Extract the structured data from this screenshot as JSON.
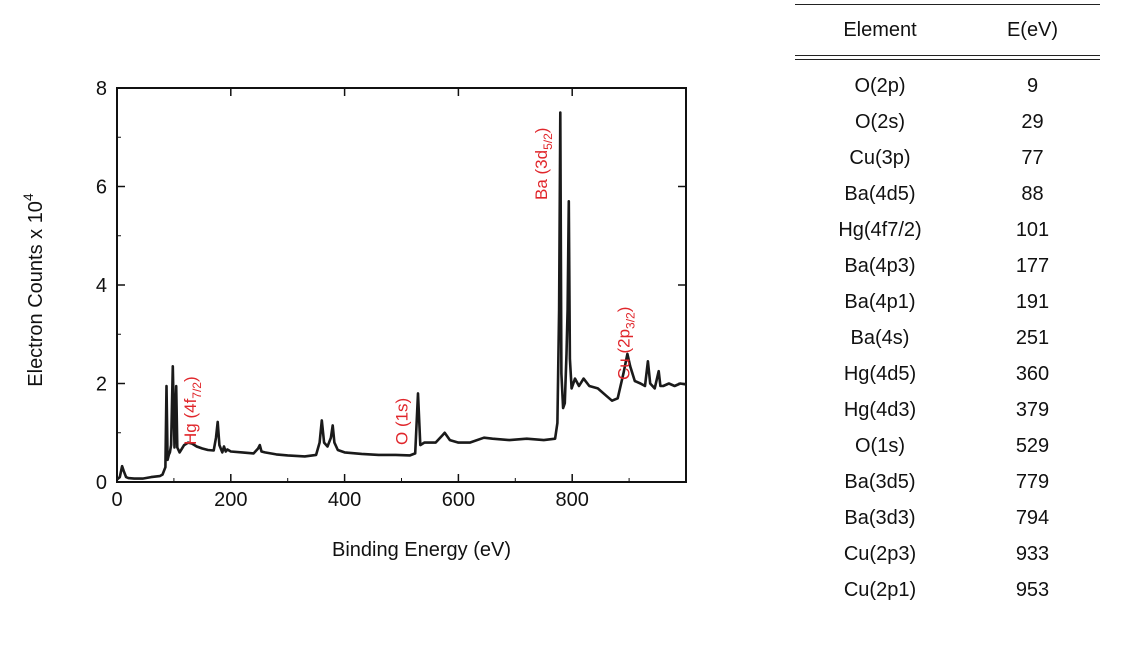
{
  "chart_data": {
    "type": "line",
    "xlabel": "Binding Energy (eV)",
    "ylabel": "Electron Counts x 10",
    "ylabel_superscript": "4",
    "xlim": [
      0,
      1000
    ],
    "ylim": [
      0,
      8
    ],
    "xticks": [
      0,
      200,
      400,
      600,
      800
    ],
    "yticks": [
      0,
      2,
      4,
      6,
      8
    ],
    "grid": false,
    "series": [
      {
        "color": "#1a1a1a",
        "x": [
          0,
          5,
          9,
          12,
          16,
          20,
          30,
          45,
          60,
          75,
          80,
          85,
          87,
          89,
          91,
          93,
          95,
          98,
          101,
          104,
          106,
          110,
          118,
          125,
          132,
          140,
          150,
          160,
          170,
          174,
          177,
          180,
          185,
          188,
          191,
          194,
          200,
          220,
          240,
          248,
          251,
          254,
          260,
          280,
          300,
          330,
          350,
          356,
          360,
          364,
          370,
          376,
          379,
          382,
          388,
          400,
          430,
          460,
          490,
          515,
          524,
          529,
          533,
          540,
          560,
          572,
          576,
          585,
          600,
          620,
          645,
          660,
          690,
          720,
          750,
          770,
          774,
          777,
          779,
          781,
          784,
          787,
          790,
          792,
          794,
          796,
          799,
          805,
          812,
          820,
          830,
          845,
          860,
          870,
          880,
          890,
          897,
          902,
          910,
          920,
          928,
          933,
          937,
          945,
          952,
          955,
          960,
          970,
          980,
          990,
          1000
        ],
        "y": [
          0.05,
          0.1,
          0.32,
          0.22,
          0.1,
          0.08,
          0.07,
          0.07,
          0.1,
          0.12,
          0.15,
          0.3,
          1.95,
          0.45,
          0.55,
          0.6,
          0.75,
          2.35,
          0.7,
          1.95,
          0.7,
          0.6,
          0.75,
          0.8,
          0.78,
          0.72,
          0.68,
          0.65,
          0.64,
          0.9,
          1.22,
          0.75,
          0.6,
          0.72,
          0.62,
          0.66,
          0.62,
          0.6,
          0.58,
          0.68,
          0.75,
          0.62,
          0.6,
          0.56,
          0.54,
          0.52,
          0.55,
          0.8,
          1.25,
          0.8,
          0.72,
          0.9,
          1.15,
          0.8,
          0.65,
          0.6,
          0.57,
          0.55,
          0.55,
          0.54,
          0.58,
          1.8,
          0.75,
          0.8,
          0.8,
          0.95,
          1.0,
          0.85,
          0.8,
          0.8,
          0.9,
          0.88,
          0.85,
          0.88,
          0.85,
          0.88,
          1.2,
          3.5,
          7.5,
          2.2,
          1.5,
          1.6,
          2.6,
          3.5,
          5.7,
          2.5,
          1.9,
          2.1,
          1.95,
          2.1,
          1.95,
          1.9,
          1.75,
          1.65,
          1.7,
          2.2,
          2.6,
          2.35,
          2.05,
          2.0,
          1.95,
          2.45,
          2.0,
          1.9,
          2.25,
          1.95,
          1.95,
          2.0,
          1.95,
          2.0,
          1.98
        ]
      }
    ],
    "annotations": [
      {
        "text": "Hg (4f",
        "sub": "7/2",
        "suffix": ")",
        "x": 128
      },
      {
        "text": "O (1s)",
        "sub": "",
        "suffix": "",
        "x": 500
      },
      {
        "text": "Ba (3d",
        "sub": "5/2",
        "suffix": ")",
        "x": 745
      },
      {
        "text": "Cu (2p",
        "sub": "3/2",
        "suffix": ")",
        "x": 890
      }
    ]
  },
  "table": {
    "headers": [
      "Element",
      "E(eV)"
    ],
    "rows": [
      [
        "O(2p)",
        "9"
      ],
      [
        "O(2s)",
        "29"
      ],
      [
        "Cu(3p)",
        "77"
      ],
      [
        "Ba(4d5)",
        "88"
      ],
      [
        "Hg(4f7/2)",
        "101"
      ],
      [
        "Ba(4p3)",
        "177"
      ],
      [
        "Ba(4p1)",
        "191"
      ],
      [
        "Ba(4s)",
        "251"
      ],
      [
        "Hg(4d5)",
        "360"
      ],
      [
        "Hg(4d3)",
        "379"
      ],
      [
        "O(1s)",
        "529"
      ],
      [
        "Ba(3d5)",
        "779"
      ],
      [
        "Ba(3d3)",
        "794"
      ],
      [
        "Cu(2p3)",
        "933"
      ],
      [
        "Cu(2p1)",
        "953"
      ]
    ]
  }
}
